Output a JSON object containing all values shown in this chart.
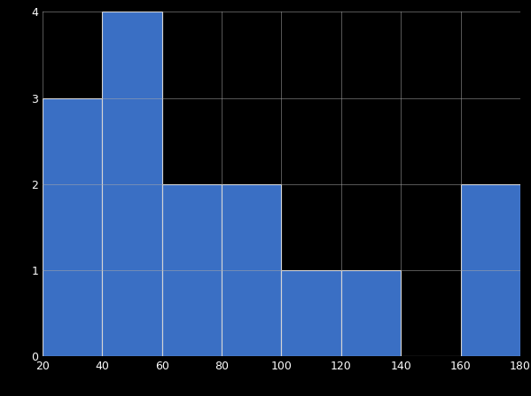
{
  "bin_edges": [
    20,
    40,
    60,
    80,
    100,
    120,
    140,
    160,
    180
  ],
  "counts": [
    3,
    4,
    2,
    2,
    1,
    1,
    0,
    2
  ],
  "bar_color": "#3a6fc4",
  "edge_color": "white",
  "background_color": "black",
  "axes_background_color": "black",
  "grid_color": "#aaaaaa",
  "tick_color": "white",
  "xlim": [
    20,
    180
  ],
  "ylim": [
    0,
    4
  ],
  "yticks": [
    0,
    1,
    2,
    3,
    4
  ],
  "xticks": [
    20,
    40,
    60,
    80,
    100,
    120,
    140,
    160,
    180
  ],
  "linewidth": 0.8,
  "figsize": [
    5.99,
    4.47
  ],
  "dpi": 100
}
